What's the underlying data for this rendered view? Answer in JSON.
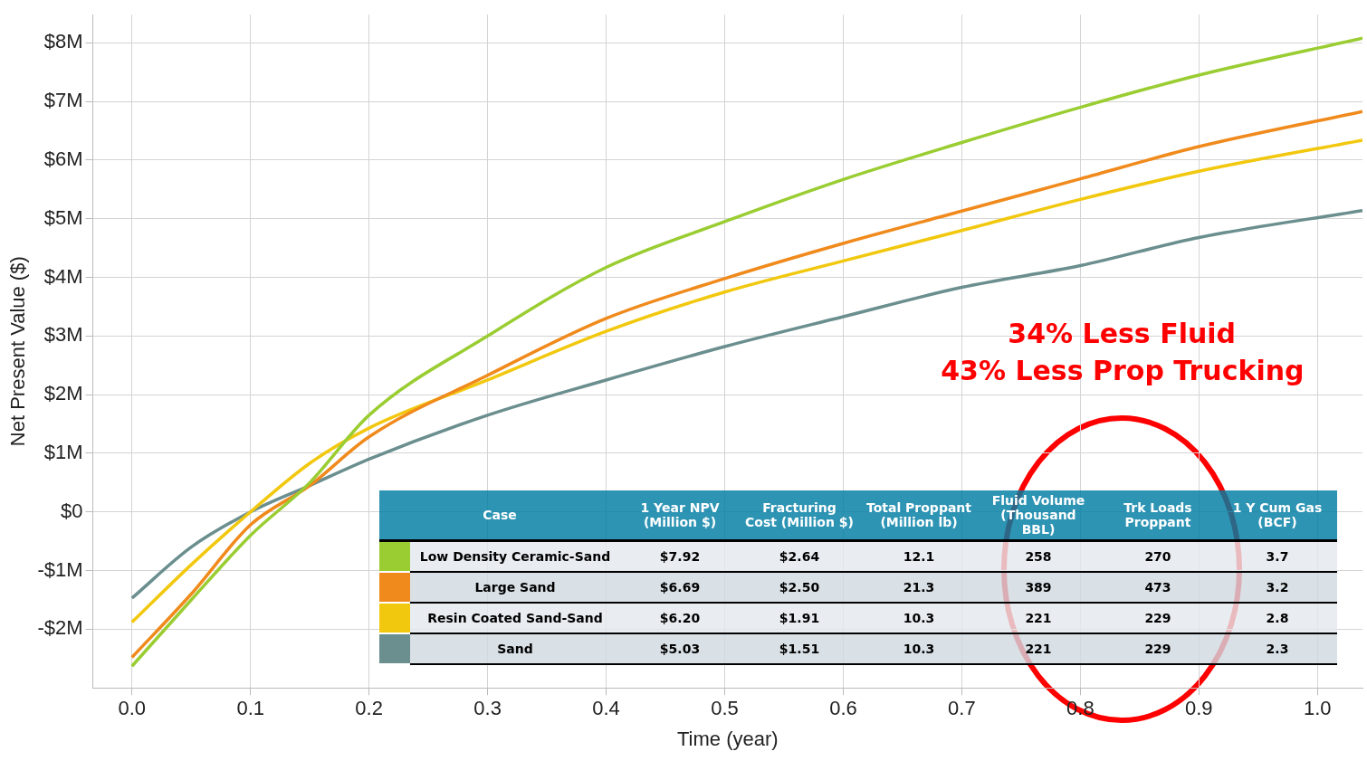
{
  "chart_data": [
    {
      "type": "line",
      "xlabel": "Time (year)",
      "ylabel": "Net Present Value ($)",
      "x": [
        0,
        0.05,
        0.1,
        0.15,
        0.2,
        0.3,
        0.4,
        0.5,
        0.6,
        0.7,
        0.8,
        0.9,
        1.038
      ],
      "series": [
        {
          "name": "Low Density Ceramic-Sand",
          "color": "#9acd32",
          "values": [
            -2.63,
            -1.5,
            -0.4,
            0.5,
            1.65,
            3.0,
            4.17,
            4.95,
            5.67,
            6.3,
            6.9,
            7.45,
            8.08
          ]
        },
        {
          "name": "Large Sand",
          "color": "#f08a1c",
          "values": [
            -2.48,
            -1.4,
            -0.22,
            0.45,
            1.28,
            2.33,
            3.3,
            3.98,
            4.58,
            5.13,
            5.68,
            6.23,
            6.83
          ]
        },
        {
          "name": "Resin Coated Sand-Sand",
          "color": "#f2c80f",
          "values": [
            -1.88,
            -0.9,
            0,
            0.83,
            1.43,
            2.25,
            3.08,
            3.75,
            4.28,
            4.8,
            5.33,
            5.81,
            6.34
          ]
        },
        {
          "name": "Sand",
          "color": "#6b8e8e",
          "values": [
            -1.47,
            -0.6,
            0,
            0.45,
            0.9,
            1.65,
            2.25,
            2.82,
            3.33,
            3.83,
            4.2,
            4.68,
            5.14
          ]
        }
      ],
      "xlim": [
        -0.033,
        1.038
      ],
      "xticks": [
        {
          "value": 0,
          "label": "0.0"
        },
        0.1,
        0.2,
        0.3,
        0.4,
        0.5,
        0.6,
        0.7,
        0.8,
        0.9,
        {
          "value": 1,
          "label": "1.0"
        }
      ],
      "ylim": [
        -3.0,
        8.48
      ],
      "yticks": [
        {
          "value": -2,
          "label": "-$2M"
        },
        {
          "value": -1,
          "label": "-$1M"
        },
        {
          "value": 0,
          "label": "$0"
        },
        {
          "value": 1,
          "label": "$1M"
        },
        {
          "value": 2,
          "label": "$2M"
        },
        {
          "value": 3,
          "label": "$3M"
        },
        {
          "value": 4,
          "label": "$4M"
        },
        {
          "value": 5,
          "label": "$5M"
        },
        {
          "value": 6,
          "label": "$6M"
        },
        {
          "value": 7,
          "label": "$7M"
        },
        {
          "value": 8,
          "label": "$8M"
        }
      ],
      "grid": true,
      "marker": "none",
      "line_style": "solid",
      "annotations": [
        "34% Less Fluid",
        "43% Less Prop Trucking"
      ]
    },
    {
      "type": "other",
      "categories": [
        "Case",
        "1 Year NPV (Million $)",
        "Fracturing Cost (Million $)",
        "Total Proppant (Million lb)",
        "Fluid Volume (Thousand BBL)",
        "Trk Loads Proppant",
        "1 Y Cum Gas (BCF)"
      ],
      "annotations": [
        "$7.92",
        "$2.64",
        "12.1",
        "258",
        "270",
        "3.7",
        "$6.69",
        "$2.50",
        "21.3",
        "389",
        "473",
        "3.2",
        "$6.20",
        "$1.91",
        "10.3",
        "221",
        "229",
        "2.8",
        "$5.03",
        "$1.51",
        "10.3",
        "221",
        "229",
        "2.3"
      ]
    }
  ]
}
